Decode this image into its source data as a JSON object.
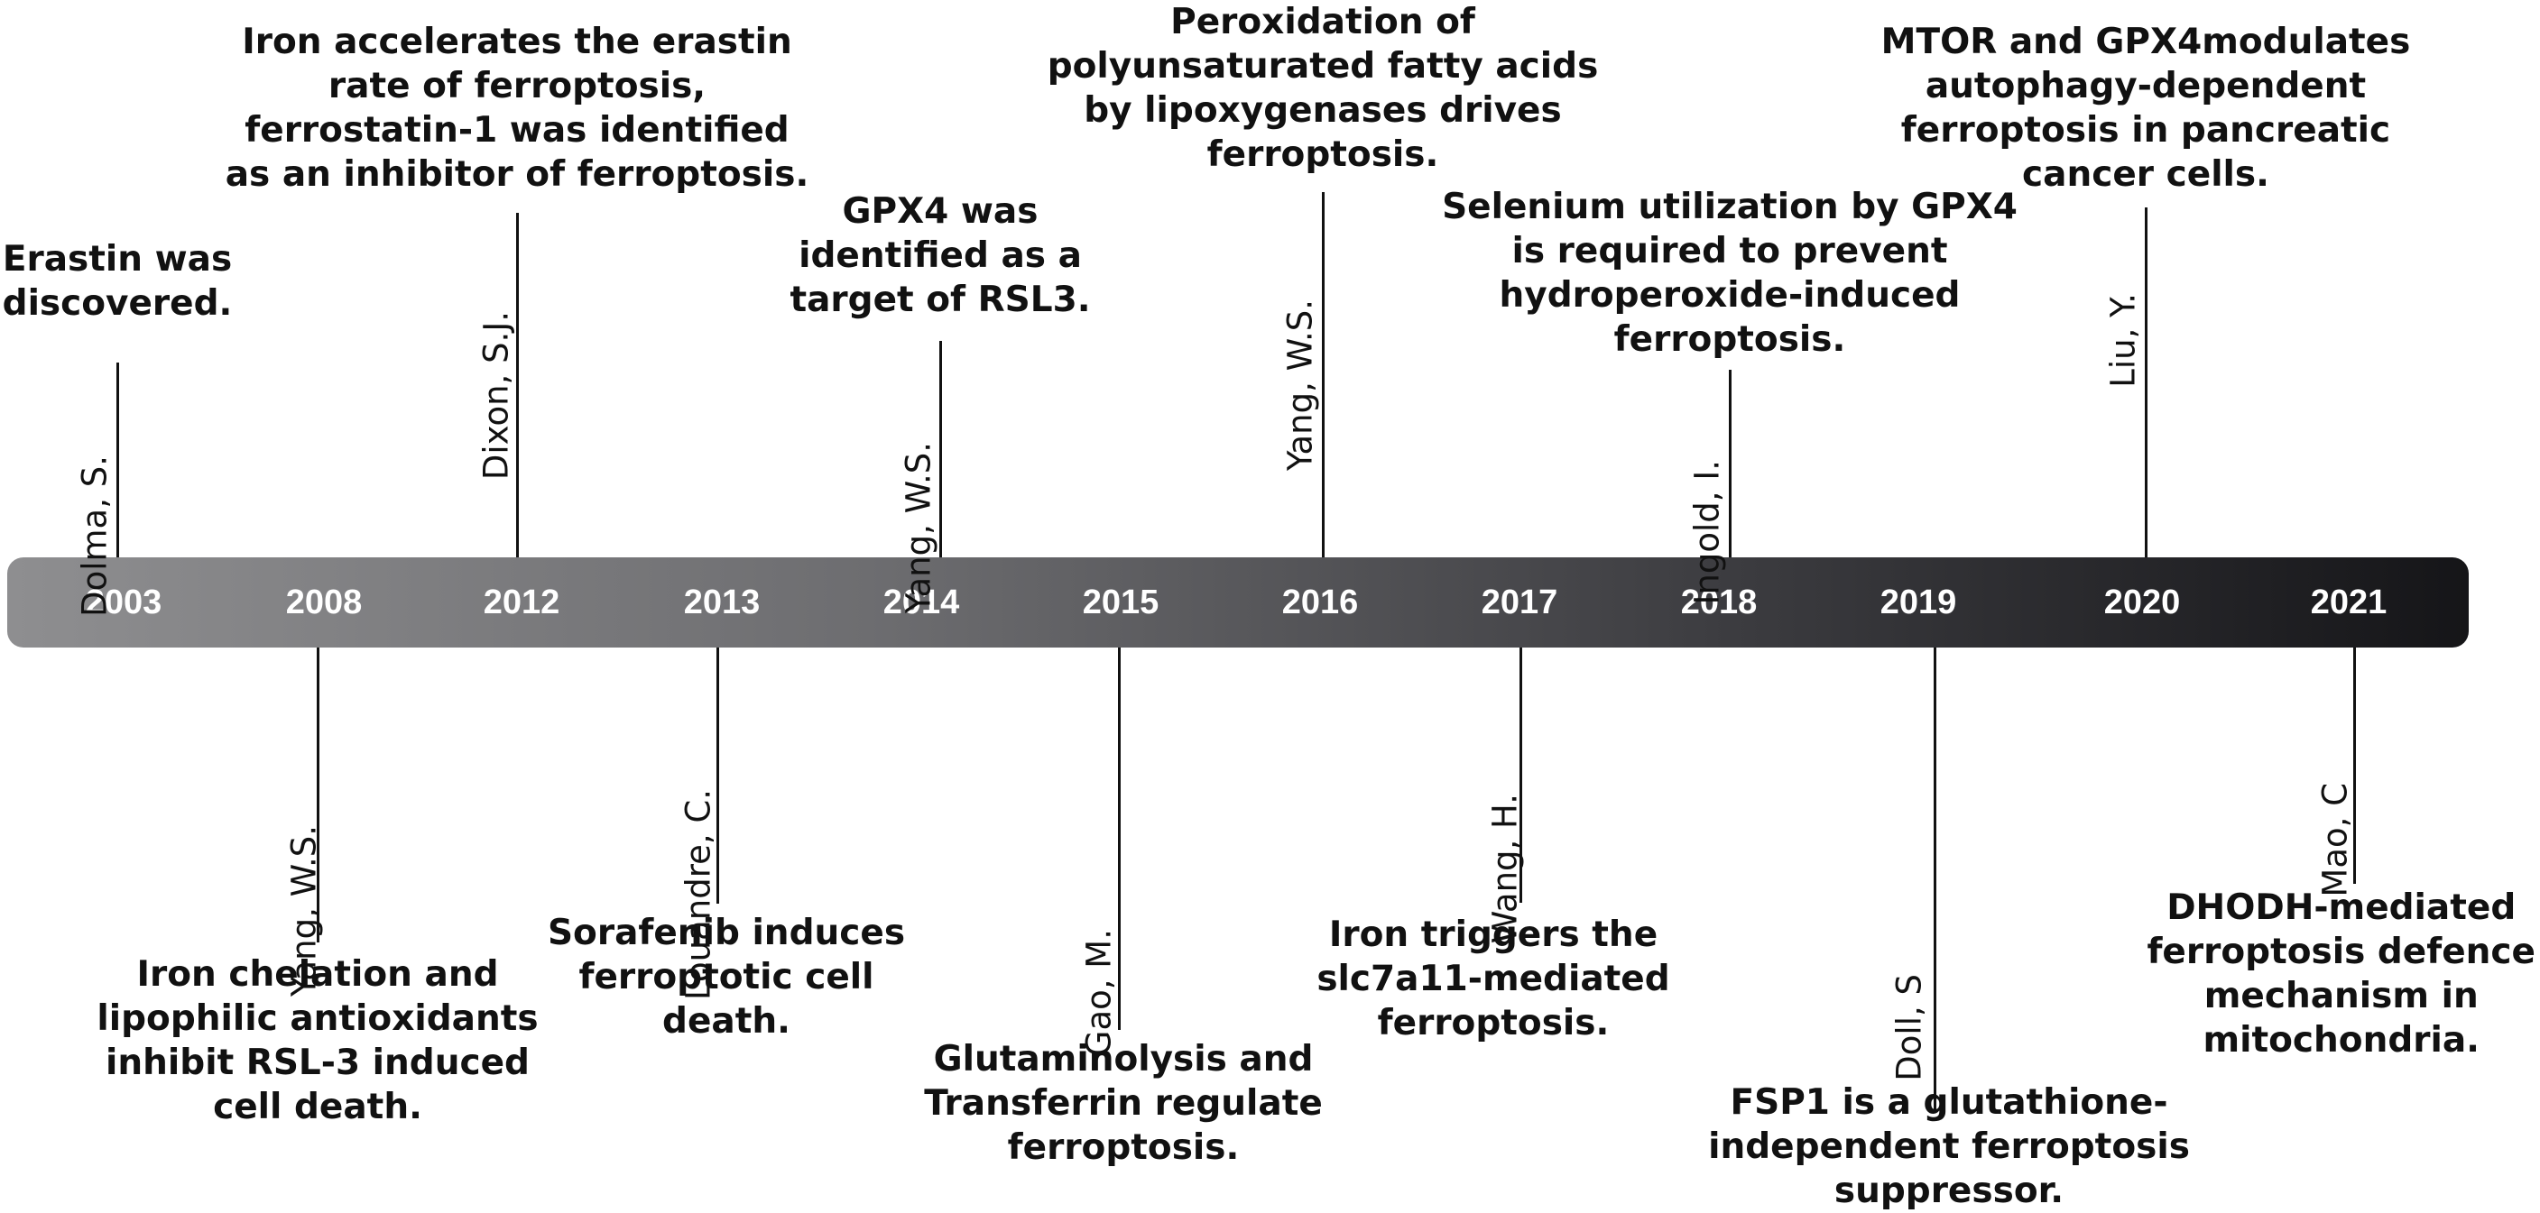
{
  "timeline": {
    "years": [
      "2003",
      "2008",
      "2012",
      "2013",
      "2014",
      "2015",
      "2016",
      "2017",
      "2018",
      "2019",
      "2020",
      "2021"
    ],
    "events": [
      {
        "author": "Dolma, S.",
        "description": "Erastin was\ndiscovered."
      },
      {
        "author": "Yang, W.S.",
        "description": "Iron chelation and\nlipophilic antioxidants\ninhibit RSL-3 induced\ncell death."
      },
      {
        "author": "Dixon, S.J.",
        "description": "Iron accelerates the erastin\nrate of ferroptosis,\nferrostatin-1 was identified\nas an inhibitor of ferroptosis."
      },
      {
        "author": "Louandre, C.",
        "description": "Sorafenib induces\nferroptotic cell\ndeath."
      },
      {
        "author": "Yang, W.S.",
        "description": "GPX4 was\nidentified as a\ntarget of RSL3."
      },
      {
        "author": "Gao, M.",
        "description": "Glutaminolysis and\nTransferrin regulate\nferroptosis."
      },
      {
        "author": "Yang, W.S.",
        "description": "Peroxidation of\npolyunsaturated fatty acids\nby lipoxygenases drives\nferroptosis."
      },
      {
        "author": "Wang, H.",
        "description": "Iron triggers the\nslc7a11-mediated\nferroptosis."
      },
      {
        "author": "Ingold, I.",
        "description": "Selenium utilization by GPX4\nis required to prevent\nhydroperoxide-induced\nferroptosis."
      },
      {
        "author": "Doll, S",
        "description": "FSP1 is a glutathione-\nindependent ferroptosis\nsuppressor."
      },
      {
        "author": "Liu, Y.",
        "description": "MTOR and GPX4modulates\nautophagy-dependent\nferroptosis in pancreatic\ncancer cells."
      },
      {
        "author": "Mao, C",
        "description": "DHODH-mediated\nferroptosis defence\nmechanism in\nmitochondria."
      }
    ]
  }
}
